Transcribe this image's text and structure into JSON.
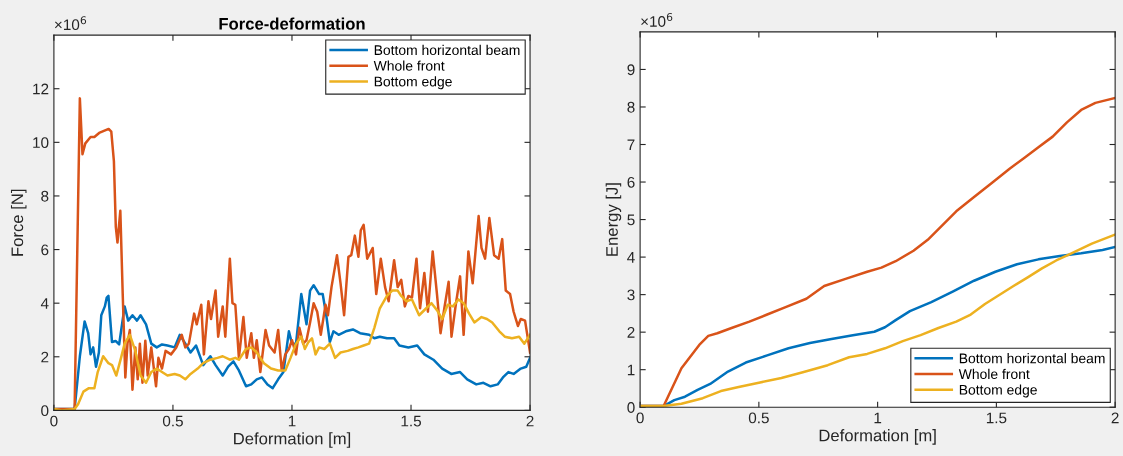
{
  "chart_data": [
    {
      "type": "line",
      "title": "Force-deformation",
      "xlabel": "Deformation [m]",
      "ylabel": "Force [N]",
      "annotations": [
        "×10$^{6}$"
      ],
      "xlim": [
        0,
        2
      ],
      "xticks": [
        0,
        0.5,
        1,
        1.5,
        2
      ],
      "ylim": [
        0,
        14
      ],
      "yticks": [
        0,
        2,
        4,
        6,
        8,
        10,
        12
      ],
      "grid": false,
      "legend": "top right",
      "line_style": "solid",
      "marker": "none",
      "series": [
        {
          "name": "Bottom horizontal beam",
          "color": "#0072bd",
          "x": [
            0,
            0.087,
            0.109,
            0.129,
            0.144,
            0.154,
            0.165,
            0.177,
            0.189,
            0.199,
            0.214,
            0.222,
            0.229,
            0.244,
            0.259,
            0.274,
            0.297,
            0.312,
            0.33,
            0.349,
            0.364,
            0.387,
            0.409,
            0.432,
            0.454,
            0.477,
            0.507,
            0.529,
            0.552,
            0.574,
            0.597,
            0.627,
            0.657,
            0.679,
            0.709,
            0.732,
            0.754,
            0.777,
            0.807,
            0.829,
            0.852,
            0.874,
            0.897,
            0.919,
            0.942,
            0.964,
            0.987,
            1.0,
            1.017,
            1.039,
            1.061,
            1.076,
            1.091,
            1.114,
            1.129,
            1.144,
            1.159,
            1.174,
            1.196,
            1.226,
            1.256,
            1.286,
            1.324,
            1.346,
            1.369,
            1.399,
            1.429,
            1.451,
            1.489,
            1.526,
            1.556,
            1.594,
            1.631,
            1.669,
            1.706,
            1.736,
            1.774,
            1.804,
            1.834,
            1.864,
            1.886,
            1.909,
            1.931,
            1.961,
            1.984,
            2.0
          ],
          "values": [
            0.05,
            0.05,
            2.02,
            3.32,
            2.88,
            2.09,
            2.35,
            1.63,
            2.16,
            3.55,
            3.88,
            4.21,
            4.27,
            2.55,
            2.59,
            2.46,
            3.88,
            3.35,
            3.55,
            3.35,
            3.55,
            3.21,
            2.49,
            2.35,
            2.46,
            2.42,
            2.35,
            2.82,
            2.49,
            2.16,
            2.42,
            1.69,
            2.02,
            1.69,
            1.3,
            1.63,
            1.83,
            1.49,
            0.9,
            0.97,
            1.16,
            1.23,
            0.97,
            0.83,
            1.16,
            1.43,
            2.95,
            2.49,
            2.49,
            4.34,
            3.21,
            4.47,
            4.67,
            4.34,
            4.34,
            3.55,
            2.55,
            2.95,
            2.82,
            2.95,
            3.02,
            2.88,
            2.82,
            2.69,
            2.75,
            2.69,
            2.69,
            2.42,
            2.35,
            2.42,
            2.09,
            1.89,
            1.56,
            1.36,
            1.43,
            1.16,
            0.97,
            1.03,
            0.9,
            0.97,
            1.23,
            1.43,
            1.36,
            1.56,
            1.63,
            1.96
          ]
        },
        {
          "name": "Whole front",
          "color": "#d95319",
          "x": [
            0,
            0.087,
            0.109,
            0.12,
            0.132,
            0.154,
            0.17,
            0.19,
            0.23,
            0.241,
            0.252,
            0.26,
            0.267,
            0.279,
            0.289,
            0.3,
            0.309,
            0.319,
            0.33,
            0.342,
            0.352,
            0.361,
            0.372,
            0.384,
            0.394,
            0.409,
            0.429,
            0.439,
            0.454,
            0.469,
            0.492,
            0.514,
            0.537,
            0.552,
            0.567,
            0.589,
            0.6,
            0.619,
            0.63,
            0.649,
            0.66,
            0.679,
            0.69,
            0.709,
            0.72,
            0.739,
            0.75,
            0.762,
            0.777,
            0.796,
            0.81,
            0.829,
            0.84,
            0.852,
            0.867,
            0.889,
            0.904,
            0.927,
            0.942,
            0.957,
            0.972,
            0.987,
            1.0,
            1.017,
            1.031,
            1.047,
            1.061,
            1.076,
            1.091,
            1.106,
            1.121,
            1.141,
            1.151,
            1.166,
            1.189,
            1.204,
            1.219,
            1.237,
            1.249,
            1.264,
            1.279,
            1.289,
            1.301,
            1.316,
            1.339,
            1.354,
            1.373,
            1.391,
            1.406,
            1.429,
            1.444,
            1.459,
            1.474,
            1.489,
            1.504,
            1.523,
            1.538,
            1.556,
            1.571,
            1.591,
            1.609,
            1.624,
            1.64,
            1.658,
            1.67,
            1.688,
            1.706,
            1.721,
            1.741,
            1.759,
            1.784,
            1.796,
            1.811,
            1.829,
            1.849,
            1.868,
            1.883,
            1.898,
            1.916,
            1.931,
            1.949,
            1.961,
            1.979,
            2.0
          ],
          "values": [
            0.05,
            0.05,
            11.64,
            9.56,
            9.96,
            10.2,
            10.2,
            10.35,
            10.5,
            10.4,
            9.3,
            6.85,
            6.26,
            7.45,
            4.34,
            1.23,
            2.49,
            3.0,
            0.77,
            2.35,
            1.16,
            2.49,
            1.03,
            2.6,
            1.3,
            2.35,
            0.9,
            1.96,
            1.56,
            2.22,
            2.09,
            2.35,
            2.82,
            2.35,
            2.49,
            3.61,
            3.21,
            3.94,
            2.09,
            4.07,
            3.41,
            4.47,
            2.75,
            3.88,
            2.75,
            5.66,
            4.0,
            3.94,
            1.96,
            3.48,
            1.96,
            2.88,
            1.96,
            2.62,
            1.43,
            3.0,
            2.42,
            2.16,
            3.0,
            1.49,
            2.09,
            2.29,
            2.62,
            2.09,
            3.08,
            2.49,
            2.62,
            3.28,
            4.0,
            3.68,
            2.82,
            3.94,
            3.55,
            4.6,
            5.79,
            4.74,
            3.55,
            5.73,
            5.79,
            6.52,
            5.73,
            6.72,
            6.92,
            5.66,
            6.06,
            4.34,
            5.66,
            4.6,
            4.07,
            5.6,
            4.6,
            4.87,
            3.88,
            4.27,
            4.21,
            5.66,
            3.81,
            5.13,
            3.68,
            5.93,
            4.34,
            2.88,
            3.81,
            4.8,
            2.75,
            3.94,
            5.0,
            2.82,
            5.93,
            4.74,
            7.25,
            6.06,
            5.66,
            7.18,
            5.79,
            5.66,
            6.39,
            4.47,
            4.34,
            3.68,
            3.15,
            3.41,
            3.35,
            2.16
          ]
        },
        {
          "name": "Bottom edge",
          "color": "#edb120",
          "x": [
            0,
            0.034,
            0.087,
            0.102,
            0.124,
            0.147,
            0.17,
            0.184,
            0.207,
            0.229,
            0.244,
            0.262,
            0.282,
            0.297,
            0.319,
            0.342,
            0.364,
            0.387,
            0.409,
            0.432,
            0.454,
            0.477,
            0.507,
            0.529,
            0.552,
            0.574,
            0.604,
            0.627,
            0.657,
            0.687,
            0.709,
            0.739,
            0.762,
            0.777,
            0.807,
            0.829,
            0.852,
            0.882,
            0.912,
            0.942,
            0.972,
            0.994,
            1.017,
            1.039,
            1.054,
            1.069,
            1.084,
            1.099,
            1.114,
            1.136,
            1.159,
            1.181,
            1.204,
            1.234,
            1.256,
            1.279,
            1.301,
            1.324,
            1.346,
            1.369,
            1.399,
            1.421,
            1.444,
            1.459,
            1.481,
            1.504,
            1.534,
            1.564,
            1.586,
            1.609,
            1.631,
            1.654,
            1.676,
            1.699,
            1.721,
            1.744,
            1.766,
            1.796,
            1.819,
            1.841,
            1.871,
            1.894,
            1.924,
            1.954,
            1.976,
            2.0
          ],
          "values": [
            0.05,
            0,
            0.05,
            0.24,
            0.7,
            0.83,
            0.83,
            1.43,
            2.02,
            1.76,
            1.69,
            1.3,
            1.96,
            2.49,
            2.82,
            2.22,
            1.3,
            1.03,
            1.43,
            1.56,
            1.43,
            1.3,
            1.36,
            1.3,
            1.16,
            1.36,
            1.56,
            1.76,
            1.89,
            1.96,
            2.02,
            1.89,
            1.96,
            1.89,
            2.29,
            2.35,
            2.16,
            1.76,
            1.56,
            1.49,
            1.49,
            1.96,
            2.49,
            2.75,
            2.29,
            2.55,
            2.69,
            2.09,
            2.35,
            2.29,
            2.49,
            1.96,
            2.16,
            2.22,
            2.29,
            2.35,
            2.42,
            2.49,
            3.08,
            3.81,
            4.27,
            4.47,
            4.47,
            4.27,
            4.07,
            4.14,
            3.55,
            3.81,
            4.0,
            3.74,
            3.41,
            3.94,
            3.88,
            4.14,
            4.0,
            3.61,
            3.28,
            3.48,
            3.41,
            3.28,
            2.95,
            2.75,
            2.69,
            2.75,
            2.49,
            2.82
          ]
        }
      ]
    },
    {
      "type": "line",
      "xlabel": "Deformation [m]",
      "ylabel": "Energy [J]",
      "annotations": [
        "×10$^{6}$"
      ],
      "xlim": [
        0,
        2
      ],
      "xticks": [
        0,
        0.5,
        1,
        1.5,
        2
      ],
      "ylim": [
        0,
        10
      ],
      "yticks": [
        0,
        1,
        2,
        3,
        4,
        5,
        6,
        7,
        8,
        9
      ],
      "grid": false,
      "legend": "bottom right",
      "line_style": "solid",
      "marker": "none",
      "series": [
        {
          "name": "Bottom horizontal beam",
          "color": "#0072bd",
          "x": [
            0,
            0.099,
            0.144,
            0.189,
            0.242,
            0.295,
            0.37,
            0.445,
            0.535,
            0.625,
            0.715,
            0.806,
            0.896,
            0.986,
            1.031,
            1.076,
            1.136,
            1.226,
            1.316,
            1.406,
            1.496,
            1.587,
            1.677,
            1.767,
            1.857,
            1.947,
            2.0
          ],
          "values": [
            0.03,
            0.03,
            0.19,
            0.28,
            0.46,
            0.62,
            0.95,
            1.19,
            1.38,
            1.57,
            1.71,
            1.82,
            1.92,
            2.01,
            2.13,
            2.32,
            2.56,
            2.8,
            3.08,
            3.37,
            3.61,
            3.81,
            3.94,
            4.03,
            4.1,
            4.19,
            4.27
          ]
        },
        {
          "name": "Whole front",
          "color": "#d95319",
          "x": [
            0,
            0.099,
            0.174,
            0.249,
            0.287,
            0.325,
            0.385,
            0.46,
            0.535,
            0.61,
            0.7,
            0.775,
            0.865,
            0.956,
            1.016,
            1.076,
            1.151,
            1.211,
            1.271,
            1.331,
            1.406,
            1.482,
            1.557,
            1.617,
            1.677,
            1.737,
            1.797,
            1.857,
            1.917,
            2.0
          ],
          "values": [
            0.03,
            0.03,
            1.04,
            1.66,
            1.9,
            1.97,
            2.11,
            2.28,
            2.47,
            2.66,
            2.89,
            3.23,
            3.42,
            3.61,
            3.72,
            3.89,
            4.17,
            4.46,
            4.84,
            5.22,
            5.6,
            5.98,
            6.36,
            6.64,
            6.93,
            7.21,
            7.59,
            7.92,
            8.11,
            8.24
          ]
        },
        {
          "name": "Bottom edge",
          "color": "#edb120",
          "x": [
            0,
            0.099,
            0.174,
            0.264,
            0.34,
            0.415,
            0.505,
            0.595,
            0.685,
            0.79,
            0.88,
            0.956,
            1.031,
            1.106,
            1.181,
            1.256,
            1.331,
            1.392,
            1.452,
            1.512,
            1.572,
            1.632,
            1.692,
            1.752,
            1.827,
            1.902,
            2.0
          ],
          "values": [
            0.03,
            0.03,
            0.09,
            0.24,
            0.43,
            0.54,
            0.66,
            0.78,
            0.93,
            1.12,
            1.33,
            1.42,
            1.57,
            1.76,
            1.92,
            2.11,
            2.28,
            2.47,
            2.75,
            2.99,
            3.23,
            3.46,
            3.7,
            3.91,
            4.13,
            4.36,
            4.6
          ]
        }
      ]
    }
  ]
}
